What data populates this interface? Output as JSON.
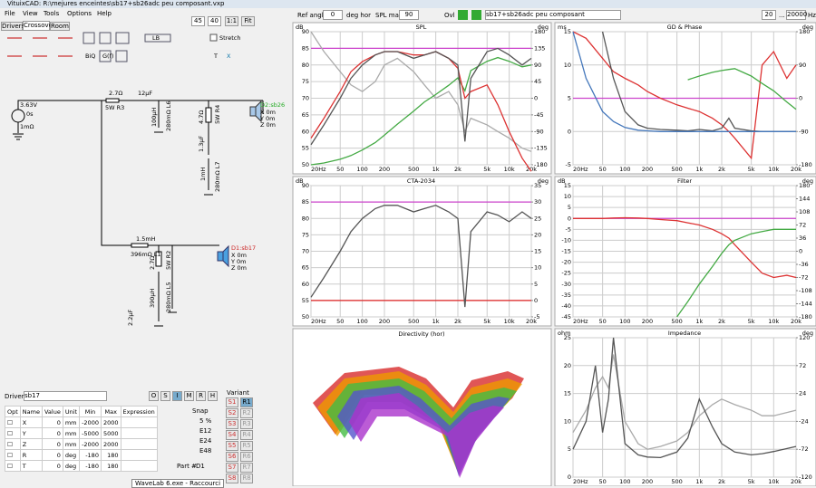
{
  "window": {
    "title": "VituixCAD: R:\\mejures enceintes\\sb17+sb26adc peu composant.vxp"
  },
  "menu": [
    "File",
    "View",
    "Tools",
    "Options",
    "Help"
  ],
  "zoom": {
    "w": 45,
    "h": 40,
    "ratio": "1:1",
    "fit": "Fit"
  },
  "tabs": [
    "Drivers",
    "Crossover",
    "Room"
  ],
  "toolbar": {
    "lb": "LB",
    "stretch": "Stretch",
    "biq": "BiQ",
    "gf": "G(f)",
    "t": "T",
    "x": "X"
  },
  "schematic": {
    "labels": [
      "3.63V",
      "0s",
      "1mΩ",
      "2.7Ω",
      "5W R3",
      "12µF",
      "100µH",
      "280mΩ L6",
      "4.7Ω",
      "5W R4",
      "1.3µF",
      "1mH",
      "280mΩ L7",
      "D2:sb26",
      "X 0m",
      "Y 0m",
      "Z 0m",
      "1.5mH",
      "396mΩ L1",
      "2.7Ω",
      "5W R2",
      "390µH",
      "280mΩ L5",
      "2.2µF",
      "D1:sb17",
      "X 0m",
      "Y 0m",
      "Z 0m"
    ]
  },
  "driver_panel": {
    "label": "Driver",
    "driver": "sb17",
    "buttons": [
      "O",
      "S",
      "I",
      "M",
      "R",
      "H"
    ],
    "headers": [
      "Opt",
      "Name",
      "Value",
      "Unit",
      "Min",
      "Max",
      "Expression"
    ],
    "rows": [
      [
        "X",
        0,
        "mm",
        -2000,
        2000
      ],
      [
        "Y",
        0,
        "mm",
        -5000,
        5000
      ],
      [
        "Z",
        0,
        "mm",
        -2000,
        2000
      ],
      [
        "R",
        0,
        "deg",
        -180,
        180
      ],
      [
        "T",
        0,
        "deg",
        -180,
        180
      ]
    ],
    "snap_label": "Snap",
    "snap": [
      "5 %",
      "E12",
      "E24",
      "E48"
    ],
    "variant_label": "Variant",
    "variants_s": [
      "S1",
      "S2",
      "S3",
      "S4",
      "S5",
      "S6",
      "S7",
      "S8"
    ],
    "variants_r": [
      "R1",
      "R2",
      "R3",
      "R4",
      "R5",
      "R6",
      "R7",
      "R8"
    ],
    "part_label": "Part #",
    "part": "D1"
  },
  "tooltip": "WaveLab 6.exe - Raccourci",
  "chart_toolbar": {
    "ref_angle": "Ref angle",
    "angle": 0,
    "deg_hor": "deg hor",
    "spl_max": "SPL max",
    "spl_value": 90,
    "ovl": "Ovl",
    "file": "sb17+sb26adc peu composant",
    "f_min": 20,
    "dots": "...",
    "f_max": 20000,
    "hz": "Hz"
  },
  "directivity_title": "Directivity (hor)",
  "chart_data": [
    {
      "type": "line",
      "title": "SPL",
      "ylabel": "dB",
      "y2label": "deg",
      "x": [
        20,
        30,
        50,
        70,
        100,
        150,
        200,
        300,
        500,
        700,
        1000,
        1500,
        2000,
        2500,
        3000,
        5000,
        7000,
        10000,
        15000,
        20000
      ],
      "xlim": [
        20,
        20000
      ],
      "xticks": [
        {
          "value": 20,
          "label": "20Hz"
        },
        50,
        100,
        200,
        500,
        {
          "value": 1000,
          "label": "1k"
        },
        {
          "value": 2000,
          "label": "2k"
        },
        {
          "value": 5000,
          "label": "5k"
        },
        {
          "value": 10000,
          "label": "10k"
        },
        {
          "value": 20000,
          "label": "20k"
        }
      ],
      "ylim": [
        50,
        90
      ],
      "yticks": [
        50,
        55,
        60,
        65,
        70,
        75,
        80,
        85,
        90
      ],
      "y2lim": [
        -180,
        180
      ],
      "y2ticks": [
        -180,
        -135,
        -90,
        -45,
        0,
        45,
        90,
        135,
        180
      ],
      "ref_lines": [
        {
          "value": 85,
          "color": "#cc44cc"
        }
      ],
      "series": [
        {
          "color": "#aaaaaa",
          "values": [
            90,
            84,
            78,
            74,
            72,
            75,
            80,
            82,
            78,
            74,
            70,
            72,
            68,
            60,
            64,
            62,
            60,
            58,
            55,
            54
          ]
        },
        {
          "color": "#44aa44",
          "axis": "y2",
          "values": [
            -180,
            -175,
            -165,
            -155,
            -140,
            -120,
            -100,
            -70,
            -35,
            -10,
            10,
            35,
            55,
            20,
            75,
            100,
            110,
            100,
            85,
            90
          ]
        },
        {
          "color": "#dd3333",
          "values": [
            58,
            64,
            72,
            78,
            81,
            83,
            84,
            84,
            83,
            83,
            84,
            82,
            79,
            70,
            72,
            74,
            68,
            60,
            52,
            48
          ]
        },
        {
          "color": "#555555",
          "values": [
            56,
            62,
            70,
            76,
            80,
            83,
            84,
            84,
            82,
            83,
            84,
            82,
            80,
            57,
            76,
            84,
            85,
            83,
            80,
            82
          ]
        }
      ]
    },
    {
      "type": "line",
      "title": "GD & Phase",
      "ylabel": "ms",
      "y2label": "deg",
      "x": [
        20,
        30,
        50,
        70,
        100,
        150,
        200,
        300,
        500,
        700,
        1000,
        1500,
        2000,
        2500,
        3000,
        5000,
        7000,
        10000,
        15000,
        20000
      ],
      "xlim": [
        20,
        20000
      ],
      "xticks": [
        {
          "value": 20,
          "label": "20Hz"
        },
        50,
        100,
        200,
        500,
        {
          "value": 1000,
          "label": "1k"
        },
        {
          "value": 2000,
          "label": "2k"
        },
        {
          "value": 5000,
          "label": "5k"
        },
        {
          "value": 10000,
          "label": "10k"
        },
        {
          "value": 20000,
          "label": "20k"
        }
      ],
      "ylim": [
        -5,
        15
      ],
      "yticks": [
        -5,
        0,
        5,
        10,
        15
      ],
      "y2lim": [
        -180,
        180
      ],
      "y2ticks": [
        -180,
        -90,
        0,
        90,
        180
      ],
      "ref_lines": [
        {
          "value": 5,
          "color": "#cc44cc"
        }
      ],
      "series": [
        {
          "color": "#dd3333",
          "values": [
            15,
            14,
            11,
            9,
            8,
            7,
            6,
            5,
            4,
            3.5,
            3,
            2,
            1,
            0,
            -1,
            -4,
            10,
            12,
            8,
            10
          ]
        },
        {
          "color": "#44aa44",
          "axis": "y2",
          "values": [
            null,
            null,
            null,
            null,
            null,
            null,
            null,
            null,
            null,
            50,
            60,
            70,
            75,
            78,
            80,
            60,
            40,
            20,
            -10,
            -30
          ]
        },
        {
          "color": "#555555",
          "values": [
            null,
            null,
            15,
            8,
            3,
            1,
            0.5,
            0.3,
            0.2,
            0.1,
            0.3,
            0.1,
            0.5,
            2,
            0.5,
            0.1,
            0,
            0,
            0,
            0
          ]
        },
        {
          "color": "#4477bb",
          "values": [
            15,
            8,
            3,
            1.5,
            0.6,
            0.2,
            0.1,
            0,
            0,
            0,
            0,
            0,
            0,
            0,
            0,
            0,
            0,
            0,
            0,
            0
          ]
        }
      ]
    },
    {
      "type": "line",
      "title": "CTA-2034",
      "ylabel": "dB",
      "y2label": "deg",
      "x": [
        20,
        30,
        50,
        70,
        100,
        150,
        200,
        300,
        500,
        700,
        1000,
        1500,
        2000,
        2500,
        3000,
        5000,
        7000,
        10000,
        15000,
        20000
      ],
      "xlim": [
        20,
        20000
      ],
      "xticks": [
        {
          "value": 20,
          "label": "20Hz"
        },
        50,
        100,
        200,
        500,
        {
          "value": 1000,
          "label": "1k"
        },
        {
          "value": 2000,
          "label": "2k"
        },
        {
          "value": 5000,
          "label": "5k"
        },
        {
          "value": 10000,
          "label": "10k"
        },
        {
          "value": 20000,
          "label": "20k"
        }
      ],
      "ylim": [
        50,
        90
      ],
      "yticks": [
        50,
        55,
        60,
        65,
        70,
        75,
        80,
        85,
        90
      ],
      "y2lim": [
        -5,
        35
      ],
      "y2ticks": [
        -5,
        0,
        5,
        10,
        15,
        20,
        25,
        30,
        35
      ],
      "ref_lines": [
        {
          "value": 85,
          "color": "#cc44cc"
        },
        {
          "value": 55,
          "color": "#dd2222"
        }
      ],
      "series": [
        {
          "color": "#555555",
          "values": [
            56,
            62,
            70,
            76,
            80,
            83,
            84,
            84,
            82,
            83,
            84,
            82,
            80,
            53,
            76,
            82,
            81,
            79,
            82,
            80
          ]
        }
      ]
    },
    {
      "type": "line",
      "title": "Filter",
      "ylabel": "dB",
      "y2label": "deg",
      "x": [
        20,
        30,
        50,
        70,
        100,
        150,
        200,
        300,
        500,
        700,
        1000,
        1500,
        2000,
        2500,
        3000,
        5000,
        7000,
        10000,
        15000,
        20000
      ],
      "xlim": [
        20,
        20000
      ],
      "xticks": [
        {
          "value": 20,
          "label": "20Hz"
        },
        50,
        100,
        200,
        500,
        {
          "value": 1000,
          "label": "1k"
        },
        {
          "value": 2000,
          "label": "2k"
        },
        {
          "value": 5000,
          "label": "5k"
        },
        {
          "value": 10000,
          "label": "10k"
        },
        {
          "value": 20000,
          "label": "20k"
        }
      ],
      "ylim": [
        -45,
        15
      ],
      "yticks": [
        -45,
        -40,
        -35,
        -30,
        -25,
        -20,
        -15,
        -10,
        -5,
        0,
        5,
        10,
        15
      ],
      "y2lim": [
        -180,
        180
      ],
      "y2ticks": [
        -180,
        -144,
        -108,
        -72,
        -36,
        0,
        36,
        72,
        108,
        144,
        180
      ],
      "ref_lines": [
        {
          "value": 0,
          "color": "#cc44cc"
        }
      ],
      "series": [
        {
          "color": "#dd3333",
          "values": [
            0,
            0,
            0,
            0.2,
            0.3,
            0.2,
            0,
            -0.5,
            -1,
            -2,
            -3,
            -5,
            -7,
            -9,
            -12,
            -20,
            -25,
            -27,
            -26,
            -27
          ]
        },
        {
          "color": "#44aa44",
          "values": [
            null,
            null,
            null,
            null,
            null,
            null,
            null,
            null,
            -45,
            -38,
            -30,
            -22,
            -16,
            -12,
            -10,
            -7,
            -6,
            -5,
            -5,
            -5
          ]
        }
      ]
    },
    {
      "type": "line",
      "title": "Impedance",
      "ylabel": "ohm",
      "y2label": "deg",
      "x": [
        20,
        30,
        40,
        50,
        60,
        70,
        100,
        150,
        200,
        300,
        500,
        700,
        1000,
        1500,
        2000,
        3000,
        5000,
        7000,
        10000,
        20000
      ],
      "xlim": [
        20,
        20000
      ],
      "xticks": [
        {
          "value": 20,
          "label": "20Hz"
        },
        50,
        100,
        200,
        500,
        {
          "value": 1000,
          "label": "1k"
        },
        {
          "value": 2000,
          "label": "2k"
        },
        {
          "value": 5000,
          "label": "5k"
        },
        {
          "value": 10000,
          "label": "10k"
        },
        {
          "value": 20000,
          "label": "20k"
        }
      ],
      "ylim": [
        0,
        25
      ],
      "yticks": [
        0,
        5,
        10,
        15,
        20,
        25
      ],
      "y2lim": [
        -120,
        120
      ],
      "y2ticks": [
        -120,
        -72,
        -24,
        24,
        72,
        120
      ],
      "ref_lines": [],
      "series": [
        {
          "color": "#aaaaaa",
          "values": [
            8,
            12,
            16,
            18,
            16,
            22,
            10,
            6,
            5,
            5.5,
            6.5,
            8,
            11,
            13,
            14,
            13,
            12,
            11,
            11,
            12
          ]
        },
        {
          "color": "#555555",
          "values": [
            5,
            10,
            20,
            8,
            14,
            25,
            6,
            4,
            3.6,
            3.5,
            4.5,
            7,
            14,
            9,
            6,
            4.5,
            4,
            4.2,
            4.6,
            5.5
          ]
        }
      ]
    }
  ]
}
